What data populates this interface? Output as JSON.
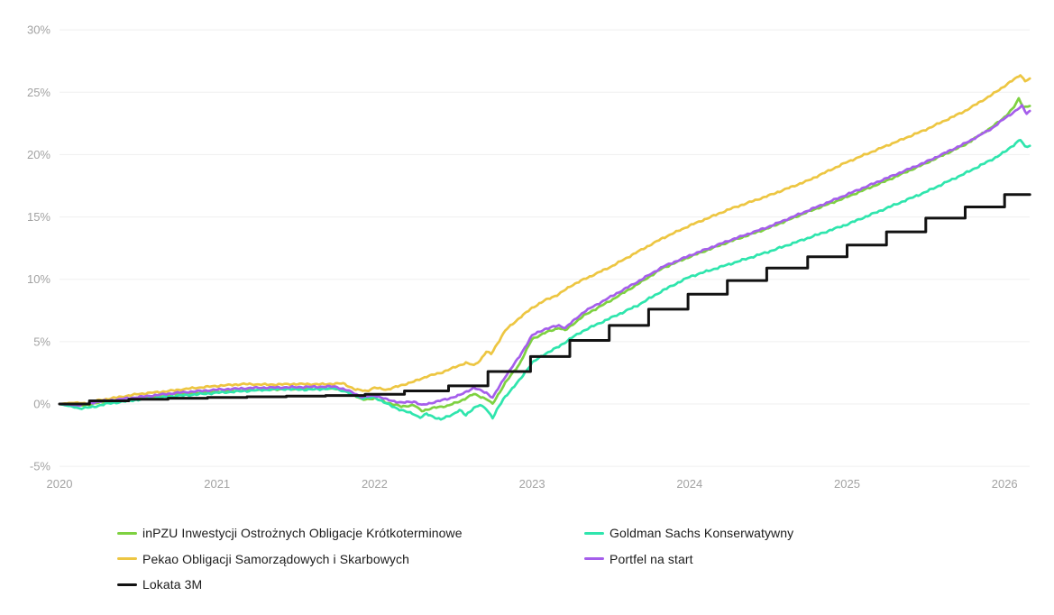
{
  "chart_data": {
    "type": "line",
    "title": "",
    "xlabel": "",
    "ylabel": "",
    "x_range": [
      2020,
      2026.16
    ],
    "y_range": [
      -5,
      30
    ],
    "y_unit": "%",
    "grid": "horizontal",
    "legend_position": "bottom",
    "x_ticks": [
      2020,
      2021,
      2022,
      2023,
      2024,
      2025,
      2026
    ],
    "x_tick_labels": [
      "2020",
      "2021",
      "2022",
      "2023",
      "2024",
      "2025",
      "2026"
    ],
    "y_ticks": [
      30,
      25,
      20,
      15,
      10,
      5,
      0,
      -5
    ],
    "y_tick_labels": [
      "30%",
      "25%",
      "20%",
      "15%",
      "10%",
      "5%",
      "0%",
      "-5%"
    ],
    "series": [
      {
        "name": "inPZU Inwestycji Ostrożnych Obligacje Krótkoterminowe",
        "color": "#7ED141",
        "step": false,
        "jitter": 0.08,
        "points": [
          [
            2020.0,
            0.0
          ],
          [
            2020.13,
            -0.15
          ],
          [
            2020.25,
            0.1
          ],
          [
            2020.33,
            0.2
          ],
          [
            2020.5,
            0.45
          ],
          [
            2020.75,
            0.8
          ],
          [
            2021.0,
            1.0
          ],
          [
            2021.25,
            1.15
          ],
          [
            2021.5,
            1.2
          ],
          [
            2021.75,
            1.25
          ],
          [
            2021.85,
            0.85
          ],
          [
            2021.92,
            0.35
          ],
          [
            2022.0,
            0.45
          ],
          [
            2022.08,
            0.1
          ],
          [
            2022.17,
            -0.2
          ],
          [
            2022.25,
            -0.1
          ],
          [
            2022.3,
            -0.55
          ],
          [
            2022.38,
            -0.3
          ],
          [
            2022.46,
            -0.15
          ],
          [
            2022.54,
            0.2
          ],
          [
            2022.63,
            0.8
          ],
          [
            2022.71,
            0.4
          ],
          [
            2022.75,
            0.0
          ],
          [
            2022.83,
            1.7
          ],
          [
            2022.92,
            3.2
          ],
          [
            2023.0,
            5.2
          ],
          [
            2023.08,
            5.7
          ],
          [
            2023.17,
            6.1
          ],
          [
            2023.21,
            5.9
          ],
          [
            2023.33,
            7.1
          ],
          [
            2023.5,
            8.3
          ],
          [
            2023.67,
            9.6
          ],
          [
            2023.83,
            10.9
          ],
          [
            2024.0,
            11.8
          ],
          [
            2024.25,
            13.0
          ],
          [
            2024.5,
            14.1
          ],
          [
            2024.75,
            15.4
          ],
          [
            2025.0,
            16.6
          ],
          [
            2025.25,
            17.9
          ],
          [
            2025.5,
            19.3
          ],
          [
            2025.75,
            20.8
          ],
          [
            2025.92,
            22.2
          ],
          [
            2026.0,
            23.0
          ],
          [
            2026.06,
            23.8
          ],
          [
            2026.09,
            24.5
          ],
          [
            2026.12,
            23.8
          ],
          [
            2026.16,
            23.9
          ]
        ]
      },
      {
        "name": "Goldman Sachs Konserwatywny",
        "color": "#2FE5AD",
        "step": false,
        "jitter": 0.09,
        "points": [
          [
            2020.0,
            0.0
          ],
          [
            2020.13,
            -0.35
          ],
          [
            2020.21,
            -0.25
          ],
          [
            2020.29,
            0.0
          ],
          [
            2020.5,
            0.35
          ],
          [
            2020.75,
            0.65
          ],
          [
            2021.0,
            0.9
          ],
          [
            2021.25,
            1.1
          ],
          [
            2021.42,
            1.2
          ],
          [
            2021.58,
            1.15
          ],
          [
            2021.75,
            1.25
          ],
          [
            2021.85,
            0.85
          ],
          [
            2021.92,
            0.45
          ],
          [
            2022.0,
            0.55
          ],
          [
            2022.08,
            0.0
          ],
          [
            2022.17,
            -0.5
          ],
          [
            2022.25,
            -0.8
          ],
          [
            2022.29,
            -1.1
          ],
          [
            2022.33,
            -0.8
          ],
          [
            2022.42,
            -1.25
          ],
          [
            2022.5,
            -0.8
          ],
          [
            2022.54,
            -0.5
          ],
          [
            2022.58,
            -0.9
          ],
          [
            2022.63,
            -0.3
          ],
          [
            2022.67,
            -0.1
          ],
          [
            2022.71,
            -0.4
          ],
          [
            2022.75,
            -1.1
          ],
          [
            2022.79,
            -0.2
          ],
          [
            2022.83,
            0.6
          ],
          [
            2022.92,
            1.9
          ],
          [
            2023.0,
            3.3
          ],
          [
            2023.08,
            4.0
          ],
          [
            2023.17,
            4.6
          ],
          [
            2023.25,
            5.3
          ],
          [
            2023.33,
            5.9
          ],
          [
            2023.5,
            6.9
          ],
          [
            2023.67,
            7.9
          ],
          [
            2023.83,
            9.1
          ],
          [
            2024.0,
            10.2
          ],
          [
            2024.25,
            11.2
          ],
          [
            2024.5,
            12.2
          ],
          [
            2024.75,
            13.3
          ],
          [
            2025.0,
            14.4
          ],
          [
            2025.25,
            15.7
          ],
          [
            2025.5,
            17.0
          ],
          [
            2025.75,
            18.5
          ],
          [
            2025.92,
            19.6
          ],
          [
            2026.0,
            20.2
          ],
          [
            2026.08,
            21.0
          ],
          [
            2026.1,
            21.2
          ],
          [
            2026.13,
            20.6
          ],
          [
            2026.16,
            20.7
          ]
        ]
      },
      {
        "name": "Pekao Obligacji Samorządowych i Skarbowych",
        "color": "#EDC642",
        "step": false,
        "jitter": 0.08,
        "points": [
          [
            2020.0,
            0.0
          ],
          [
            2020.08,
            0.1
          ],
          [
            2020.17,
            0.05
          ],
          [
            2020.25,
            0.3
          ],
          [
            2020.33,
            0.45
          ],
          [
            2020.5,
            0.8
          ],
          [
            2020.67,
            1.0
          ],
          [
            2020.83,
            1.25
          ],
          [
            2021.0,
            1.45
          ],
          [
            2021.17,
            1.6
          ],
          [
            2021.33,
            1.55
          ],
          [
            2021.5,
            1.6
          ],
          [
            2021.67,
            1.58
          ],
          [
            2021.8,
            1.65
          ],
          [
            2021.88,
            1.15
          ],
          [
            2021.95,
            1.05
          ],
          [
            2022.0,
            1.3
          ],
          [
            2022.08,
            1.15
          ],
          [
            2022.17,
            1.5
          ],
          [
            2022.25,
            1.8
          ],
          [
            2022.33,
            2.2
          ],
          [
            2022.42,
            2.5
          ],
          [
            2022.5,
            2.9
          ],
          [
            2022.58,
            3.3
          ],
          [
            2022.63,
            3.1
          ],
          [
            2022.67,
            3.5
          ],
          [
            2022.71,
            4.2
          ],
          [
            2022.74,
            4.0
          ],
          [
            2022.83,
            5.9
          ],
          [
            2022.92,
            6.9
          ],
          [
            2023.0,
            7.7
          ],
          [
            2023.08,
            8.3
          ],
          [
            2023.17,
            8.8
          ],
          [
            2023.25,
            9.5
          ],
          [
            2023.33,
            10.0
          ],
          [
            2023.5,
            11.0
          ],
          [
            2023.67,
            12.2
          ],
          [
            2023.83,
            13.3
          ],
          [
            2024.0,
            14.3
          ],
          [
            2024.25,
            15.6
          ],
          [
            2024.5,
            16.7
          ],
          [
            2024.75,
            17.9
          ],
          [
            2025.0,
            19.4
          ],
          [
            2025.25,
            20.7
          ],
          [
            2025.5,
            22.0
          ],
          [
            2025.75,
            23.5
          ],
          [
            2025.92,
            24.8
          ],
          [
            2026.0,
            25.5
          ],
          [
            2026.08,
            26.2
          ],
          [
            2026.1,
            26.4
          ],
          [
            2026.13,
            25.9
          ],
          [
            2026.16,
            26.1
          ]
        ]
      },
      {
        "name": "Portfel na start",
        "color": "#A55EEB",
        "step": false,
        "jitter": 0.08,
        "points": [
          [
            2020.0,
            0.0
          ],
          [
            2020.13,
            -0.1
          ],
          [
            2020.25,
            0.2
          ],
          [
            2020.33,
            0.3
          ],
          [
            2020.5,
            0.55
          ],
          [
            2020.75,
            0.9
          ],
          [
            2021.0,
            1.15
          ],
          [
            2021.25,
            1.3
          ],
          [
            2021.5,
            1.35
          ],
          [
            2021.75,
            1.4
          ],
          [
            2021.85,
            1.0
          ],
          [
            2021.92,
            0.55
          ],
          [
            2022.0,
            0.7
          ],
          [
            2022.08,
            0.35
          ],
          [
            2022.17,
            0.1
          ],
          [
            2022.25,
            0.2
          ],
          [
            2022.3,
            -0.1
          ],
          [
            2022.38,
            0.15
          ],
          [
            2022.46,
            0.4
          ],
          [
            2022.54,
            0.7
          ],
          [
            2022.63,
            1.3
          ],
          [
            2022.71,
            0.9
          ],
          [
            2022.75,
            0.5
          ],
          [
            2022.83,
            2.2
          ],
          [
            2022.92,
            3.8
          ],
          [
            2023.0,
            5.5
          ],
          [
            2023.08,
            6.0
          ],
          [
            2023.17,
            6.3
          ],
          [
            2023.21,
            6.1
          ],
          [
            2023.33,
            7.4
          ],
          [
            2023.5,
            8.6
          ],
          [
            2023.67,
            9.8
          ],
          [
            2023.83,
            11.0
          ],
          [
            2024.0,
            11.9
          ],
          [
            2024.25,
            13.1
          ],
          [
            2024.5,
            14.2
          ],
          [
            2024.75,
            15.5
          ],
          [
            2025.0,
            16.8
          ],
          [
            2025.25,
            18.1
          ],
          [
            2025.5,
            19.4
          ],
          [
            2025.75,
            20.9
          ],
          [
            2025.92,
            22.1
          ],
          [
            2026.0,
            22.9
          ],
          [
            2026.08,
            23.6
          ],
          [
            2026.11,
            23.9
          ],
          [
            2026.14,
            23.3
          ],
          [
            2026.16,
            23.5
          ]
        ]
      },
      {
        "name": "Lokata 3M",
        "color": "#121212",
        "step": true,
        "jitter": 0,
        "points": [
          [
            2020.0,
            0.0
          ],
          [
            2020.19,
            0.25
          ],
          [
            2020.44,
            0.38
          ],
          [
            2020.69,
            0.46
          ],
          [
            2020.94,
            0.52
          ],
          [
            2021.19,
            0.58
          ],
          [
            2021.44,
            0.63
          ],
          [
            2021.69,
            0.68
          ],
          [
            2021.94,
            0.78
          ],
          [
            2022.19,
            1.05
          ],
          [
            2022.47,
            1.45
          ],
          [
            2022.72,
            2.6
          ],
          [
            2022.99,
            3.8
          ],
          [
            2023.24,
            5.1
          ],
          [
            2023.49,
            6.3
          ],
          [
            2023.74,
            7.6
          ],
          [
            2023.99,
            8.8
          ],
          [
            2024.24,
            9.9
          ],
          [
            2024.49,
            10.9
          ],
          [
            2024.75,
            11.8
          ],
          [
            2025.0,
            12.75
          ],
          [
            2025.25,
            13.8
          ],
          [
            2025.5,
            14.9
          ],
          [
            2025.75,
            15.8
          ],
          [
            2026.0,
            16.8
          ],
          [
            2026.16,
            16.8
          ]
        ]
      }
    ]
  },
  "legend": {
    "items": [
      {
        "label": "inPZU Inwestycji Ostrożnych Obligacje Krótkoterminowe",
        "color": "#7ED141"
      },
      {
        "label": "Goldman Sachs Konserwatywny",
        "color": "#2FE5AD"
      },
      {
        "label": "Pekao Obligacji Samorządowych i Skarbowych",
        "color": "#EDC642"
      },
      {
        "label": "Portfel na start",
        "color": "#A55EEB"
      },
      {
        "label": "Lokata 3M",
        "color": "#121212"
      }
    ]
  },
  "style": {
    "gridline_color": "#efefef",
    "axis_label_color": "#a2a2a2",
    "legend_text_color": "#1b1b1b",
    "background": "#ffffff"
  }
}
